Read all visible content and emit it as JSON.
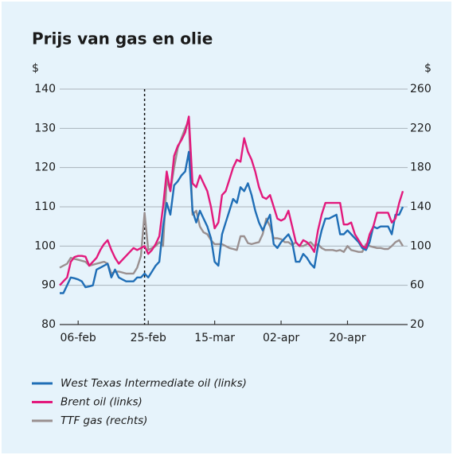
{
  "chart_data": {
    "type": "line",
    "title": "Prijs van gas en olie",
    "y_label": "$",
    "y2_label": "$",
    "x": [
      "01-feb",
      "02-feb",
      "03-feb",
      "04-feb",
      "05-feb",
      "06-feb",
      "07-feb",
      "08-feb",
      "09-feb",
      "10-feb",
      "11-feb",
      "12-feb",
      "13-feb",
      "14-feb",
      "15-feb",
      "16-feb",
      "17-feb",
      "18-feb",
      "19-feb",
      "20-feb",
      "21-feb",
      "22-feb",
      "23-feb",
      "24-feb",
      "25-feb",
      "26-feb",
      "27-feb",
      "28-feb",
      "01-mar",
      "02-mar",
      "03-mar",
      "04-mar",
      "05-mar",
      "06-mar",
      "07-mar",
      "08-mar",
      "09-mar",
      "10-mar",
      "11-mar",
      "12-mar",
      "13-mar",
      "14-mar",
      "15-mar",
      "16-mar",
      "17-mar",
      "18-mar",
      "19-mar",
      "20-mar",
      "21-mar",
      "22-mar",
      "23-mar",
      "24-mar",
      "25-mar",
      "26-mar",
      "27-mar",
      "28-mar",
      "29-mar",
      "30-mar",
      "31-mar",
      "01-apr",
      "02-apr",
      "03-apr",
      "04-apr",
      "05-apr",
      "06-apr",
      "07-apr",
      "08-apr",
      "09-apr",
      "10-apr",
      "11-apr",
      "12-apr",
      "13-apr",
      "14-apr",
      "15-apr",
      "16-apr",
      "17-apr",
      "18-apr",
      "19-apr",
      "20-apr",
      "21-apr",
      "22-apr",
      "23-apr",
      "24-apr",
      "25-apr",
      "26-apr",
      "27-apr",
      "28-apr",
      "29-apr",
      "30-apr",
      "01-mei",
      "02-mei",
      "03-mei",
      "04-mei",
      "05-mei"
    ],
    "xticks": [
      "06-feb",
      "25-feb",
      "15-mar",
      "02-apr",
      "20-apr"
    ],
    "event_line": "24-feb",
    "ylim": [
      80,
      140
    ],
    "yticks": [
      80,
      90,
      100,
      110,
      120,
      130,
      140
    ],
    "y2lim": [
      20,
      260
    ],
    "y2ticks": [
      20,
      60,
      100,
      140,
      180,
      220,
      260
    ],
    "grid": true,
    "series": [
      {
        "name": "West Texas Intermediate oil (links)",
        "color": "#1f6eb6",
        "axis": "y",
        "values": [
          88,
          88,
          90,
          92,
          91.8,
          91.5,
          91,
          89.5,
          89.7,
          90,
          94,
          94.5,
          95,
          95.5,
          92,
          94,
          92,
          91.5,
          91,
          91,
          91,
          92,
          92,
          93,
          92,
          93.5,
          95,
          96,
          105,
          111,
          108,
          115.5,
          116.5,
          118,
          119,
          124,
          109,
          106,
          109,
          107,
          105,
          102,
          96,
          95,
          103,
          106,
          109,
          112,
          111,
          115,
          114,
          116,
          113,
          109,
          106,
          104,
          106,
          108,
          100.5,
          99.5,
          101,
          102,
          103,
          101,
          96,
          96,
          98,
          97,
          95.5,
          94.5,
          100,
          104,
          107,
          107,
          107.5,
          108,
          103,
          103,
          104,
          103,
          102,
          101,
          99.5,
          99,
          101,
          105,
          104.5,
          105,
          105,
          105,
          103,
          108,
          108,
          110
        ]
      },
      {
        "name": "Brent oil (links)",
        "color": "#e2197c",
        "axis": "y",
        "values": [
          90,
          91,
          92,
          96,
          97.2,
          97.5,
          97.5,
          97.3,
          95,
          96,
          97,
          99,
          100.5,
          101.5,
          99,
          97,
          95.5,
          96.5,
          97.5,
          98.5,
          99.5,
          99,
          99.5,
          100,
          98,
          99,
          100.5,
          102.5,
          110,
          119,
          114,
          123,
          125.5,
          127,
          129,
          133,
          116,
          115,
          118,
          116,
          114,
          110,
          104.5,
          106,
          113,
          114,
          117,
          120,
          122,
          121.5,
          127.5,
          124,
          122,
          119,
          115,
          112.5,
          112,
          113,
          110,
          107,
          106.5,
          107,
          109,
          105,
          101,
          100,
          101.5,
          101,
          100,
          98.5,
          104,
          108,
          111,
          111,
          111,
          111,
          111,
          105.5,
          105.5,
          106,
          103,
          101.5,
          100,
          99.5,
          103,
          105,
          108.5,
          108.5,
          108.5,
          108.5,
          106,
          107,
          111,
          114
        ]
      },
      {
        "name": "TTF gas (rechts)",
        "color": "#9a9090",
        "axis": "y2",
        "values": [
          78,
          80,
          82,
          88,
          87,
          86,
          85,
          84,
          80,
          81,
          82,
          83,
          84,
          82,
          72,
          74,
          74,
          73,
          72,
          72,
          72,
          78,
          90,
          134,
          96,
          98,
          100,
          104,
          100,
          168,
          156,
          180,
          200,
          210,
          220,
          228,
          132,
          136,
          120,
          114,
          112,
          106,
          102,
          102,
          102,
          100,
          98,
          97,
          96,
          110,
          110,
          103,
          102,
          103,
          104,
          112,
          128,
          120,
          108,
          108,
          107,
          104,
          104,
          101,
          104,
          100,
          100,
          102,
          104,
          100,
          102,
          98,
          96,
          96,
          96,
          95,
          96,
          94,
          100,
          96,
          95,
          94,
          94,
          102,
          100,
          99,
          98,
          98,
          97,
          97,
          100,
          104,
          106,
          100
        ]
      }
    ]
  }
}
